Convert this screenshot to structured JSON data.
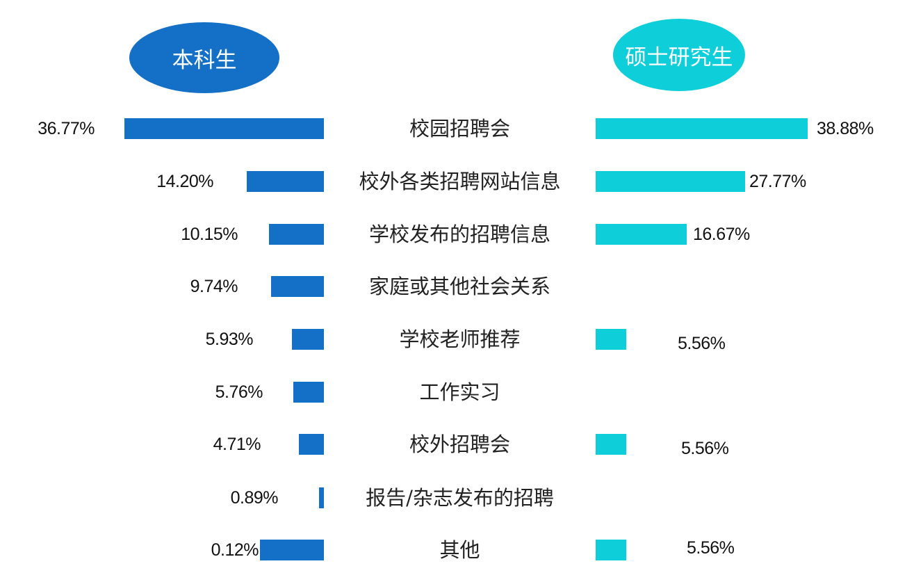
{
  "groups": {
    "left": {
      "label": "本科生",
      "color": "#1470c6"
    },
    "right": {
      "label": "硕士研究生",
      "color": "#0ecfd9"
    }
  },
  "rows": [
    {
      "category": "校园招聘会",
      "left": {
        "label": "36.77%",
        "value": 36.77
      },
      "right": {
        "label": "38.88%",
        "value": 38.88
      }
    },
    {
      "category": "校外各类招聘网站信息",
      "left": {
        "label": "14.20%",
        "value": 14.2
      },
      "right": {
        "label": "27.77%",
        "value": 27.77
      }
    },
    {
      "category": "学校发布的招聘信息",
      "left": {
        "label": "10.15%",
        "value": 10.15
      },
      "right": {
        "label": "16.67%",
        "value": 16.67
      }
    },
    {
      "category": "家庭或其他社会关系",
      "left": {
        "label": "9.74%",
        "value": 9.74
      },
      "right": null
    },
    {
      "category": "学校老师推荐",
      "left": {
        "label": "5.93%",
        "value": 5.93
      },
      "right": {
        "label": "5.56%",
        "value": 5.56
      }
    },
    {
      "category": "工作实习",
      "left": {
        "label": "5.76%",
        "value": 5.76
      },
      "right": null
    },
    {
      "category": "校外招聘会",
      "left": {
        "label": "4.71%",
        "value": 4.71
      },
      "right": {
        "label": "5.56%",
        "value": 5.56
      }
    },
    {
      "category": "报告/杂志发布的招聘",
      "left": {
        "label": "0.89%",
        "value": 0.89
      },
      "right": null
    },
    {
      "category": "其他",
      "left": {
        "label": "0.12%",
        "value": 0.12
      },
      "right": {
        "label": "5.56%",
        "value": 5.56
      }
    }
  ],
  "chart_data": {
    "type": "bar",
    "orientation": "horizontal-butterfly",
    "title": "",
    "categories": [
      "校园招聘会",
      "校外各类招聘网站信息",
      "学校发布的招聘信息",
      "家庭或其他社会关系",
      "学校老师推荐",
      "工作实习",
      "校外招聘会",
      "报告/杂志发布的招聘",
      "其他"
    ],
    "series": [
      {
        "name": "本科生",
        "color": "#1470c6",
        "values": [
          36.77,
          14.2,
          10.15,
          9.74,
          5.93,
          5.76,
          4.71,
          0.89,
          0.12
        ]
      },
      {
        "name": "硕士研究生",
        "color": "#0ecfd9",
        "values": [
          38.88,
          27.77,
          16.67,
          null,
          5.56,
          null,
          5.56,
          null,
          5.56
        ]
      }
    ],
    "unit": "%",
    "grid": false,
    "legend_position": "top (oval labels above each side)"
  }
}
